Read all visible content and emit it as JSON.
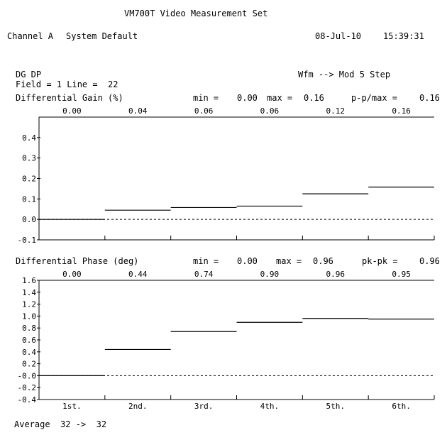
{
  "header": {
    "title": "VM700T Video Measurement Set",
    "channel": "Channel A",
    "setup": "System Default",
    "date": "08-Jul-10",
    "time": "15:39:31"
  },
  "measurement": {
    "name": "DG DP",
    "source": "Wfm --> Mod 5 Step",
    "field_line": "Field = 1 Line =  22"
  },
  "footer": {
    "average": "Average  32 ->  32"
  },
  "chart_data": [
    {
      "type": "step",
      "title": "Differential Gain (%)",
      "stats": {
        "min_label": "min =",
        "min": "0.00",
        "max_label": "max =",
        "max": "0.16",
        "pp_label": "p-p/max =",
        "pp": "0.16"
      },
      "value_labels": [
        "0.00",
        "0.04",
        "0.06",
        "0.06",
        "0.12",
        "0.16"
      ],
      "values": [
        0.0,
        0.045,
        0.058,
        0.065,
        0.125,
        0.158
      ],
      "yticks": [
        "0.4",
        "0.3",
        "0.2",
        "0.1",
        "0.0",
        "-0.1"
      ],
      "ylim": [
        -0.1,
        0.5
      ],
      "zero_line": "dashed"
    },
    {
      "type": "step",
      "title": "Differential Phase (deg)",
      "stats": {
        "min_label": "min =",
        "min": "0.00",
        "max_label": "max =",
        "max": "0.96",
        "pp_label": "pk-pk =",
        "pp": "0.96"
      },
      "value_labels": [
        "0.00",
        "0.44",
        "0.74",
        "0.90",
        "0.96",
        "0.95"
      ],
      "values": [
        0.0,
        0.44,
        0.74,
        0.895,
        0.96,
        0.95
      ],
      "yticks": [
        "1.6",
        "1.4",
        "1.2",
        "1.0",
        "0.8",
        "0.6",
        "0.4",
        "0.2",
        "-0.0",
        "-0.2",
        "-0.4"
      ],
      "ylim": [
        -0.4,
        1.6
      ],
      "zero_line": "dashed",
      "categories": [
        "1st.",
        "2nd.",
        "3rd.",
        "4th.",
        "5th.",
        "6th."
      ]
    }
  ]
}
